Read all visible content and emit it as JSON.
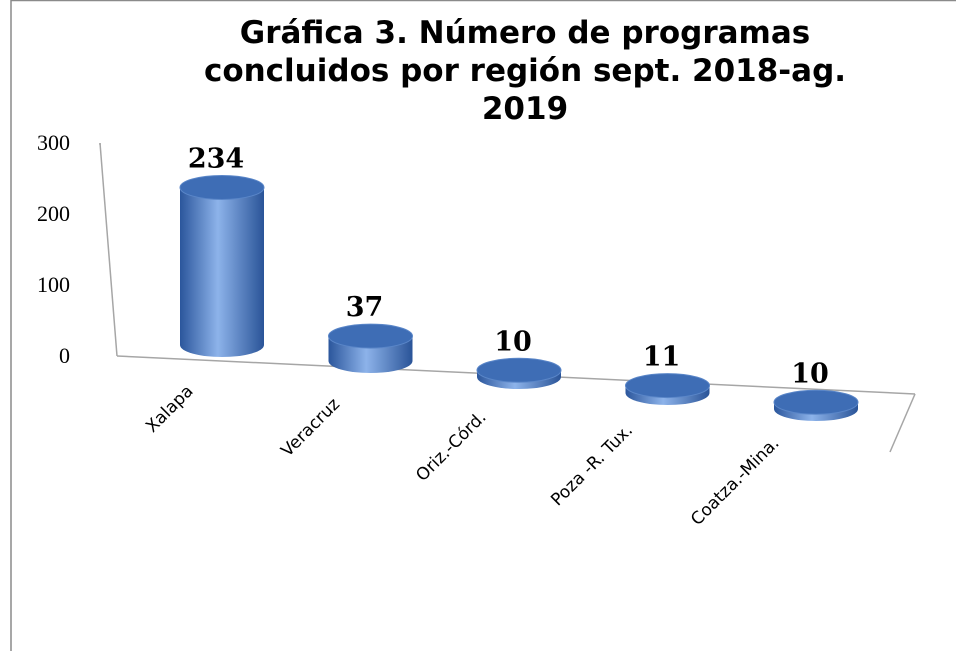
{
  "chart_data": {
    "type": "bar3d",
    "title": "Gráfica 3. Número de programas concluidos por región  sept. 2018-ag. 2019",
    "categories": [
      "Xalapa",
      "Veracruz",
      "Oriz.-Córd.",
      "Poza -R. Tux.",
      "Coatza.-Mina."
    ],
    "values": [
      234,
      37,
      10,
      11,
      10
    ],
    "color": "#4a7cc4",
    "ylim": [
      0,
      300
    ],
    "yticks": [
      0,
      100,
      200,
      300
    ],
    "grid": false
  }
}
